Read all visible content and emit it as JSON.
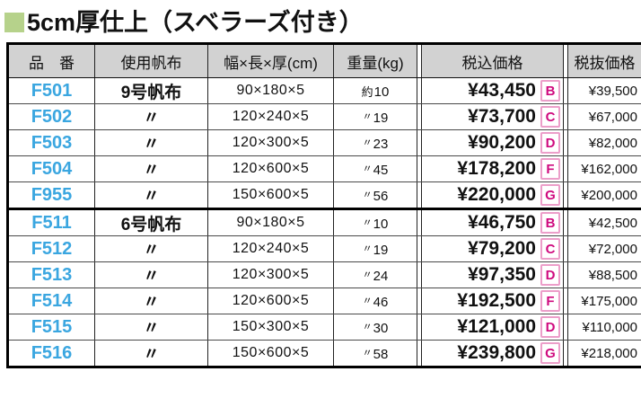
{
  "title": {
    "text": "5cm厚仕上（スベラーズ付き）",
    "marker": "green-square"
  },
  "colors": {
    "title_square_green": "#b6d28b",
    "header_background": "#d2d2d2",
    "product_code_blue": "#3aa6e0",
    "grade_letter_magenta": "#cf0a7e",
    "grade_box_border_pink": "#ec9ec9"
  },
  "table": {
    "headers": {
      "code": "品　番",
      "canvas": "使用帆布",
      "size": "幅×長×厚(cm)",
      "weight": "重量(kg)",
      "price_incl": "税込価格",
      "price_excl": "税抜価格"
    },
    "groups": [
      {
        "rows": [
          {
            "code": "F501",
            "canvas": "9号帆布",
            "size": "90×180×5",
            "weight_prefix": "約",
            "weight": "10",
            "price_incl": "¥43,450",
            "grade": "B",
            "price_excl": "¥39,500"
          },
          {
            "code": "F502",
            "canvas": "〃",
            "size": "120×240×5",
            "weight_prefix": "〃",
            "weight": "19",
            "price_incl": "¥73,700",
            "grade": "C",
            "price_excl": "¥67,000"
          },
          {
            "code": "F503",
            "canvas": "〃",
            "size": "120×300×5",
            "weight_prefix": "〃",
            "weight": "23",
            "price_incl": "¥90,200",
            "grade": "D",
            "price_excl": "¥82,000"
          },
          {
            "code": "F504",
            "canvas": "〃",
            "size": "120×600×5",
            "weight_prefix": "〃",
            "weight": "45",
            "price_incl": "¥178,200",
            "grade": "F",
            "price_excl": "¥162,000"
          },
          {
            "code": "F955",
            "canvas": "〃",
            "size": "150×600×5",
            "weight_prefix": "〃",
            "weight": "56",
            "price_incl": "¥220,000",
            "grade": "G",
            "price_excl": "¥200,000"
          }
        ]
      },
      {
        "rows": [
          {
            "code": "F511",
            "canvas": "6号帆布",
            "size": "90×180×5",
            "weight_prefix": "〃",
            "weight": "10",
            "price_incl": "¥46,750",
            "grade": "B",
            "price_excl": "¥42,500"
          },
          {
            "code": "F512",
            "canvas": "〃",
            "size": "120×240×5",
            "weight_prefix": "〃",
            "weight": "19",
            "price_incl": "¥79,200",
            "grade": "C",
            "price_excl": "¥72,000"
          },
          {
            "code": "F513",
            "canvas": "〃",
            "size": "120×300×5",
            "weight_prefix": "〃",
            "weight": "24",
            "price_incl": "¥97,350",
            "grade": "D",
            "price_excl": "¥88,500"
          },
          {
            "code": "F514",
            "canvas": "〃",
            "size": "120×600×5",
            "weight_prefix": "〃",
            "weight": "46",
            "price_incl": "¥192,500",
            "grade": "F",
            "price_excl": "¥175,000"
          },
          {
            "code": "F515",
            "canvas": "〃",
            "size": "150×300×5",
            "weight_prefix": "〃",
            "weight": "30",
            "price_incl": "¥121,000",
            "grade": "D",
            "price_excl": "¥110,000"
          },
          {
            "code": "F516",
            "canvas": "〃",
            "size": "150×600×5",
            "weight_prefix": "〃",
            "weight": "58",
            "price_incl": "¥239,800",
            "grade": "G",
            "price_excl": "¥218,000"
          }
        ]
      }
    ]
  }
}
